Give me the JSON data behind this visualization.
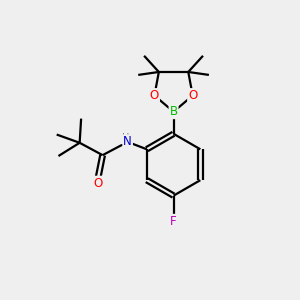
{
  "bg_color": "#efefef",
  "bond_color": "#000000",
  "atom_colors": {
    "O": "#ff0000",
    "N": "#0000cd",
    "B": "#00bb00",
    "F": "#bb00bb",
    "H": "#777777",
    "C": "#000000"
  },
  "figsize": [
    3.0,
    3.0
  ],
  "dpi": 100,
  "lw": 1.6
}
